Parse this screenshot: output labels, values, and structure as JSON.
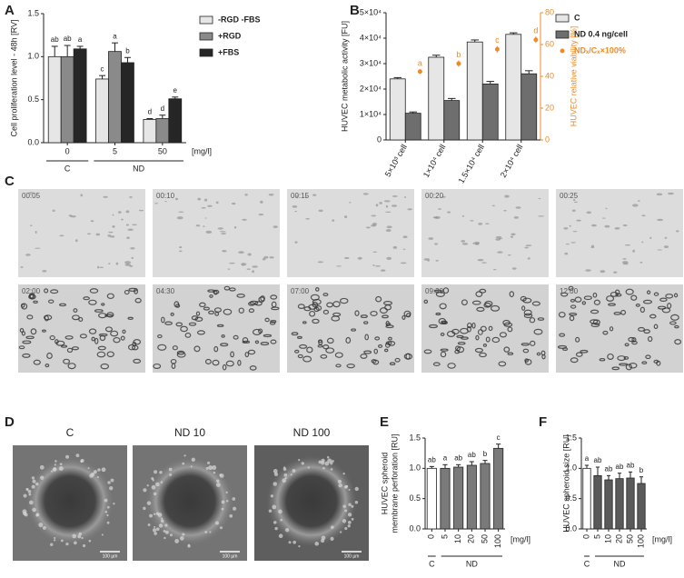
{
  "panel_labels": [
    "A",
    "B",
    "C",
    "D",
    "E",
    "F"
  ],
  "timelapse": {
    "timestamps": [
      "00:05",
      "00:10",
      "00:15",
      "00:20",
      "00:25",
      "02:00",
      "04:30",
      "07:00",
      "09:30",
      "12:00"
    ]
  },
  "spheroids": {
    "titles": [
      "C",
      "ND 10",
      "ND 100"
    ],
    "scale_bar": "100 µm"
  },
  "chart_data": [
    {
      "type": "bar",
      "ylabel": "Cell proliferation level - 48h [RV]",
      "x_unit": "[mg/l]",
      "categories": [
        "0",
        "5",
        "50"
      ],
      "groups": [
        {
          "label": "C",
          "count": 1
        },
        {
          "label": "ND",
          "count": 2
        }
      ],
      "ylim": [
        0,
        1.5
      ],
      "yticks": [
        {
          "value": 0,
          "label": "0.0"
        },
        0.5,
        {
          "value": 1,
          "label": "1.0"
        },
        1.5
      ],
      "series": [
        {
          "name": "-RGD -FBS",
          "color": "#e6e6e6",
          "values": [
            1.0,
            0.74,
            0.27
          ],
          "errors": [
            0.12,
            0.04,
            0.01
          ],
          "letters": [
            "ab",
            "c",
            "d"
          ]
        },
        {
          "name": "+RGD",
          "color": "#8a8a8a",
          "values": [
            1.0,
            1.06,
            0.28
          ],
          "errors": [
            0.13,
            0.1,
            0.04
          ],
          "letters": [
            "ab",
            "a",
            "d"
          ]
        },
        {
          "name": "+FBS",
          "color": "#262626",
          "values": [
            1.09,
            0.93,
            0.51
          ],
          "errors": [
            0.03,
            0.06,
            0.02
          ],
          "letters": [
            "a",
            "b",
            "e"
          ]
        }
      ]
    },
    {
      "type": "bar",
      "ylabel": "HUVEC metabolic activity [FU]",
      "y2label": "HUVEC relative viability [%]",
      "categories": [
        "5×10³ cell",
        "1×10⁴ cell",
        "1.5×10⁴ cell",
        "2×10⁴ cell"
      ],
      "ylim": [
        0,
        50000
      ],
      "yticks": [
        0,
        {
          "value": 10000,
          "label": "1×10⁴"
        },
        {
          "value": 20000,
          "label": "2×10⁴"
        },
        {
          "value": 30000,
          "label": "3×10⁴"
        },
        {
          "value": 40000,
          "label": "4×10⁴"
        },
        {
          "value": 50000,
          "label": "5×10⁴"
        }
      ],
      "y2lim": [
        0,
        80
      ],
      "y2ticks": [
        0,
        20,
        40,
        60,
        80
      ],
      "series": [
        {
          "name": "C",
          "color": "#e6e6e6",
          "values": [
            24000,
            32500,
            38500,
            41500
          ],
          "errors": [
            500,
            800,
            800,
            600
          ]
        },
        {
          "name": "ND 0.4 ng/cell",
          "color": "#6e6e6e",
          "values": [
            10500,
            15500,
            22000,
            26000
          ],
          "errors": [
            500,
            800,
            1000,
            1200
          ]
        },
        {
          "name": "NDₓ/Cₓ×100%",
          "color": "#f08a24",
          "axis": "y2",
          "values": [
            43,
            48,
            57,
            63
          ],
          "errors": [
            1.5,
            2,
            2,
            2
          ],
          "letters": [
            "a",
            "b",
            "c",
            "d"
          ]
        }
      ]
    },
    {
      "type": "bar",
      "ylabel": [
        "HUVEC spheroid",
        "membrane perforation [RU]"
      ],
      "x_unit": "[mg/l]",
      "categories": [
        "0",
        "5",
        "10",
        "20",
        "50",
        "100"
      ],
      "groups": [
        {
          "label": "C",
          "count": 1
        },
        {
          "label": "ND",
          "count": 5
        }
      ],
      "ylim": [
        0,
        1.5
      ],
      "yticks": [
        {
          "value": 0,
          "label": "0.0"
        },
        0.5,
        {
          "value": 1,
          "label": "1.0"
        },
        1.5
      ],
      "series": [
        {
          "colors": [
            "#ffffff",
            "#7a7a7a",
            "#7a7a7a",
            "#7a7a7a",
            "#7a7a7a",
            "#7a7a7a"
          ],
          "values": [
            1.0,
            1.0,
            1.02,
            1.05,
            1.08,
            1.33
          ],
          "errors": [
            0.03,
            0.06,
            0.04,
            0.06,
            0.05,
            0.07
          ],
          "letters": [
            "ab",
            "a",
            "ab",
            "ab",
            "b",
            "c"
          ]
        }
      ]
    },
    {
      "type": "bar",
      "ylabel": "HUVEC spheroid size [RU]",
      "x_unit": "[mg/l]",
      "categories": [
        "0",
        "5",
        "10",
        "20",
        "50",
        "100"
      ],
      "groups": [
        {
          "label": "C",
          "count": 1
        },
        {
          "label": "ND",
          "count": 5
        }
      ],
      "ylim": [
        0,
        1.5
      ],
      "yticks": [
        {
          "value": 0,
          "label": "0.0"
        },
        0.5,
        {
          "value": 1,
          "label": "1.0"
        },
        1.5
      ],
      "series": [
        {
          "colors": [
            "#ffffff",
            "#5a5a5a",
            "#5a5a5a",
            "#5a5a5a",
            "#5a5a5a",
            "#5a5a5a"
          ],
          "values": [
            1.0,
            0.88,
            0.81,
            0.83,
            0.84,
            0.75
          ],
          "errors": [
            0.05,
            0.14,
            0.07,
            0.09,
            0.1,
            0.11
          ],
          "letters": [
            "a",
            "ab",
            "ab",
            "ab",
            "ab",
            "b"
          ]
        }
      ]
    }
  ]
}
